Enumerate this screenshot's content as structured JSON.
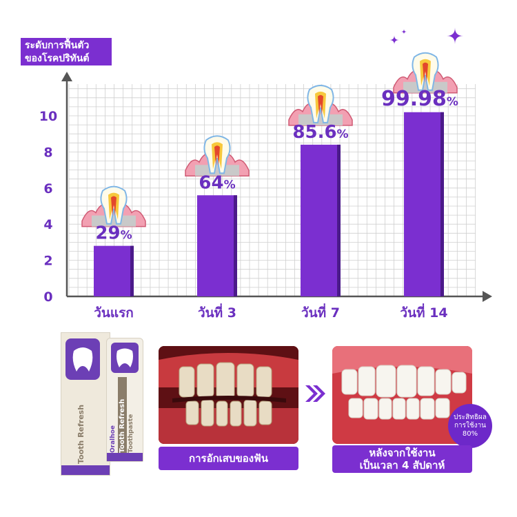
{
  "chart_data": {
    "type": "bar",
    "ylabel": "ระดับการฟื้นตัว\nของโรคปริทันต์",
    "yticks": [
      "0",
      "2",
      "4",
      "6",
      "8",
      "10"
    ],
    "ylim": [
      0,
      12
    ],
    "categories": [
      "วันแรก",
      "วันที่ 3",
      "วันที่ 7",
      "วันที่ 14"
    ],
    "values": [
      2.8,
      5.6,
      8.4,
      10.2
    ],
    "labels": [
      {
        "num": "29",
        "pct": "%"
      },
      {
        "num": "64",
        "pct": "%"
      },
      {
        "num": "85.6",
        "pct": "%"
      },
      {
        "num": "99.98",
        "pct": "%"
      }
    ],
    "grid": true,
    "colors": {
      "bar": "#7b2fd0",
      "bar_shadow": "#4b1a8a",
      "grid": "#cfcfcf",
      "text": "#6a2fbf",
      "axis": "#555555"
    }
  },
  "before_label": "การอักเสบของฟัน",
  "after_label_line1": "หลังจากใช้งาน",
  "after_label_line2": "เป็นเวลา 4 สัปดาห์",
  "badge_line1": "ประสิทธิผล",
  "badge_line2": "การใช้งาน",
  "badge_line3": "80%",
  "tube": {
    "brand": "Oralhoe",
    "name_line1": "Tooth Refresh",
    "name_line2": "Toothpaste",
    "colors": {
      "purple": "#6c3fb5",
      "cream": "#ece6d8",
      "taupe": "#8a7d6a"
    }
  },
  "arrow_icon": "double-chevron-right-icon"
}
